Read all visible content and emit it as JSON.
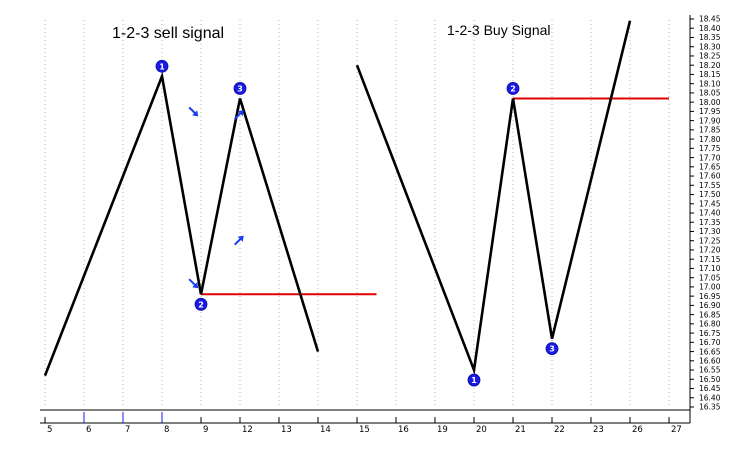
{
  "chart_data": {
    "type": "line",
    "panels": [
      {
        "title": "1-2-3 sell signal",
        "x": [
          5,
          8,
          9,
          12,
          14
        ],
        "y": [
          16.52,
          18.14,
          16.96,
          18.02,
          16.65
        ],
        "markers": [
          {
            "label": "1",
            "x": 8,
            "y": 18.14,
            "pos": "above"
          },
          {
            "label": "2",
            "x": 9,
            "y": 16.96,
            "pos": "below"
          },
          {
            "label": "3",
            "x": 12,
            "y": 18.02,
            "pos": "above"
          }
        ],
        "red_line": {
          "y": 16.96,
          "x_from": 9,
          "x_to": 15.5
        }
      },
      {
        "title": "1-2-3 Buy Signal",
        "x": [
          15,
          20,
          21,
          22,
          26
        ],
        "y": [
          18.2,
          16.55,
          18.02,
          16.72,
          18.44
        ],
        "markers": [
          {
            "label": "1",
            "x": 20,
            "y": 16.55,
            "pos": "below"
          },
          {
            "label": "2",
            "x": 21,
            "y": 18.02,
            "pos": "above"
          },
          {
            "label": "3",
            "x": 22,
            "y": 16.72,
            "pos": "below"
          }
        ],
        "red_line": {
          "y": 18.02,
          "x_from": 21,
          "x_to": 27
        }
      }
    ],
    "arrows": [
      {
        "x": 8.8,
        "y": 17.95,
        "direction": "down-right"
      },
      {
        "x": 11.9,
        "y": 17.93,
        "direction": "up-right"
      },
      {
        "x": 11.9,
        "y": 17.25,
        "direction": "up-right"
      },
      {
        "x": 8.8,
        "y": 17.02,
        "direction": "down-right"
      }
    ],
    "x_ticks": [
      5,
      6,
      7,
      8,
      9,
      12,
      13,
      14,
      15,
      16,
      19,
      20,
      21,
      22,
      23,
      26,
      27
    ],
    "xlim": [
      5,
      27
    ],
    "ylim": [
      16.35,
      18.45
    ],
    "y_tick_step": 0.05,
    "grid": "vertical dotted",
    "colors": {
      "line": "#000000",
      "signal_line": "#e00000",
      "marker": "#1a1ae6",
      "arrow": "#1a3cf0"
    }
  }
}
